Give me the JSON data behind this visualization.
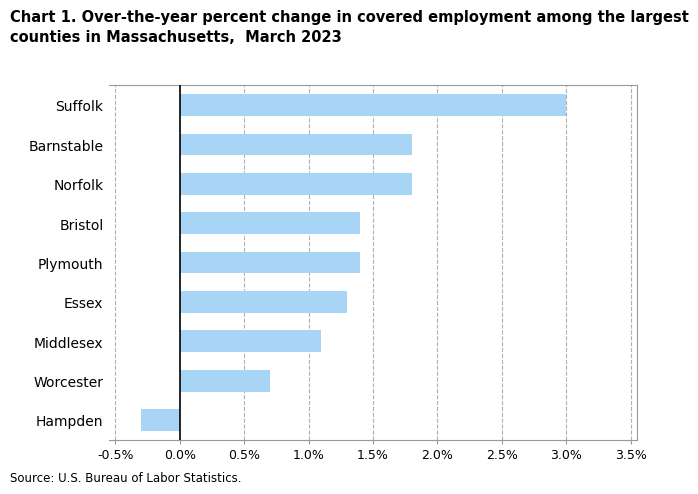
{
  "title_line1": "Chart 1. Over-the-year percent change in covered employment among the largest",
  "title_line2": "counties in Massachusetts,  March 2023",
  "source": "Source: U.S. Bureau of Labor Statistics.",
  "categories": [
    "Hampden",
    "Worcester",
    "Middlesex",
    "Essex",
    "Plymouth",
    "Bristol",
    "Norfolk",
    "Barnstable",
    "Suffolk"
  ],
  "values": [
    -0.3,
    0.7,
    1.1,
    1.3,
    1.4,
    1.4,
    1.8,
    1.8,
    3.0
  ],
  "bar_color": "#a8d4f5",
  "xlim": [
    -0.55,
    3.55
  ],
  "xticks": [
    -0.5,
    0.0,
    0.5,
    1.0,
    1.5,
    2.0,
    2.5,
    3.0,
    3.5
  ],
  "xtick_labels": [
    "-0.5%",
    "0.0%",
    "0.5%",
    "1.0%",
    "1.5%",
    "2.0%",
    "2.5%",
    "3.0%",
    "3.5%"
  ],
  "background_color": "#ffffff",
  "grid_color": "#b0b0b0",
  "title_fontsize": 10.5,
  "label_fontsize": 10,
  "tick_fontsize": 9,
  "source_fontsize": 8.5,
  "bar_height": 0.55
}
